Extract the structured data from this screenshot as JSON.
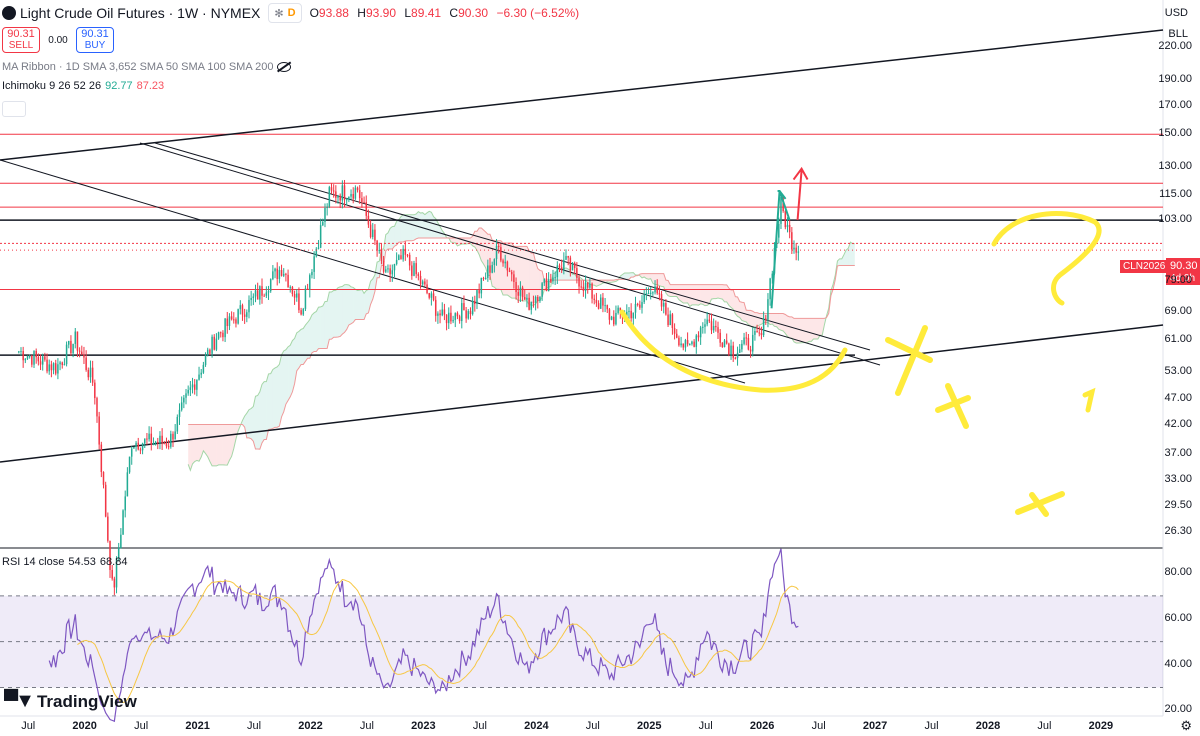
{
  "header": {
    "title": "Light Crude Oil Futures · 1W · NYMEX",
    "flag_star": "✻",
    "flag_d": "D",
    "ohlc": [
      {
        "label": "O",
        "value": "93.88"
      },
      {
        "label": "H",
        "value": "93.90"
      },
      {
        "label": "L",
        "value": "89.41"
      },
      {
        "label": "C",
        "value": "90.30"
      },
      {
        "label": "",
        "value": "−6.30 (−6.52%)"
      }
    ]
  },
  "trade": {
    "sell_price": "90.31",
    "sell_label": "SELL",
    "spread": "0.00",
    "buy_price": "90.31",
    "buy_label": "BUY"
  },
  "indicators": {
    "ma_ribbon": "MA Ribbon · 1D SMA 3,652 SMA 50 SMA 100 SMA 200",
    "ichimoku_name": "Ichimoku 9 26 52 26",
    "ichimoku_v1": "92.77",
    "ichimoku_v2": "87.23",
    "rsi_name": "RSI 14 close",
    "rsi_v1": "54.53",
    "rsi_v2": "68.84"
  },
  "price_axis": {
    "currency": "USD",
    "unit": "BLL",
    "ticks": [
      220.0,
      190.0,
      170.0,
      150.0,
      130.0,
      115.0,
      103.0,
      90.3,
      79.0,
      69.0,
      61.0,
      53.0,
      47.0,
      42.0,
      37.0,
      33.0,
      29.5,
      26.3
    ],
    "tick_labels": [
      "220.00",
      "190.00",
      "170.00",
      "150.00",
      "130.00",
      "115.00",
      "103.00",
      "79.00",
      "69.00",
      "61.00",
      "53.00",
      "47.00",
      "42.00",
      "37.00",
      "33.00",
      "29.50",
      "26.30"
    ]
  },
  "last_price": {
    "symbol": "CLN2026",
    "price": "90.30",
    "timer": "4d 0h"
  },
  "rsi_axis": {
    "ticks": [
      "80.00",
      "60.00",
      "40.00",
      "20.00"
    ]
  },
  "time_axis": [
    {
      "label": "Jul",
      "bold": false
    },
    {
      "label": "2020",
      "bold": true
    },
    {
      "label": "Jul",
      "bold": false
    },
    {
      "label": "2021",
      "bold": true
    },
    {
      "label": "Jul",
      "bold": false
    },
    {
      "label": "2022",
      "bold": true
    },
    {
      "label": "Jul",
      "bold": false
    },
    {
      "label": "2023",
      "bold": true
    },
    {
      "label": "Jul",
      "bold": false
    },
    {
      "label": "2024",
      "bold": true
    },
    {
      "label": "Jul",
      "bold": false
    },
    {
      "label": "2025",
      "bold": true
    },
    {
      "label": "Jul",
      "bold": false
    },
    {
      "label": "2026",
      "bold": true
    },
    {
      "label": "Jul",
      "bold": false
    },
    {
      "label": "2027",
      "bold": true
    },
    {
      "label": "Jul",
      "bold": false
    },
    {
      "label": "2028",
      "bold": true
    },
    {
      "label": "Jul",
      "bold": false
    },
    {
      "label": "2029",
      "bold": true
    }
  ],
  "branding": "TradingView",
  "colors": {
    "up": "#22ab94",
    "down": "#f23645",
    "rsi": "#7e57c2",
    "rsi_ma": "#f7c744",
    "annotation": "#ffeb3b"
  },
  "chart_data": {
    "type": "candlestick",
    "interval": "1W",
    "scale": "log",
    "ylim": [
      24.5,
      270
    ],
    "series_close_path": [
      [
        "2019-06",
        58
      ],
      [
        "2019-10",
        54
      ],
      [
        "2019-12",
        61
      ],
      [
        "2020-02",
        50
      ],
      [
        "2020-04",
        20
      ],
      [
        "2020-06",
        39
      ],
      [
        "2020-10",
        39
      ],
      [
        "2020-12",
        48
      ],
      [
        "2021-03",
        62
      ],
      [
        "2021-07",
        73
      ],
      [
        "2021-10",
        84
      ],
      [
        "2021-12",
        70
      ],
      [
        "2022-03",
        115
      ],
      [
        "2022-06",
        118
      ],
      [
        "2022-09",
        80
      ],
      [
        "2022-11",
        88
      ],
      [
        "2023-03",
        67
      ],
      [
        "2023-06",
        70
      ],
      [
        "2023-09",
        91
      ],
      [
        "2023-12",
        71
      ],
      [
        "2024-04",
        86
      ],
      [
        "2024-09",
        67
      ],
      [
        "2024-12",
        70
      ],
      [
        "2025-01",
        78
      ],
      [
        "2025-05",
        58
      ],
      [
        "2025-07",
        67
      ],
      [
        "2025-10",
        58
      ],
      [
        "2026-01",
        62
      ],
      [
        "2026-03",
        110
      ],
      [
        "2026-04",
        95
      ],
      [
        "2026-05",
        90.3
      ]
    ],
    "horizontal_levels": [
      150,
      121,
      109,
      103,
      93,
      76,
      57
    ],
    "rsi": {
      "period": 14,
      "ylim": [
        18,
        90
      ],
      "bands": [
        70,
        50,
        30
      ],
      "last": 54.53,
      "ma_last": 68.84
    }
  }
}
